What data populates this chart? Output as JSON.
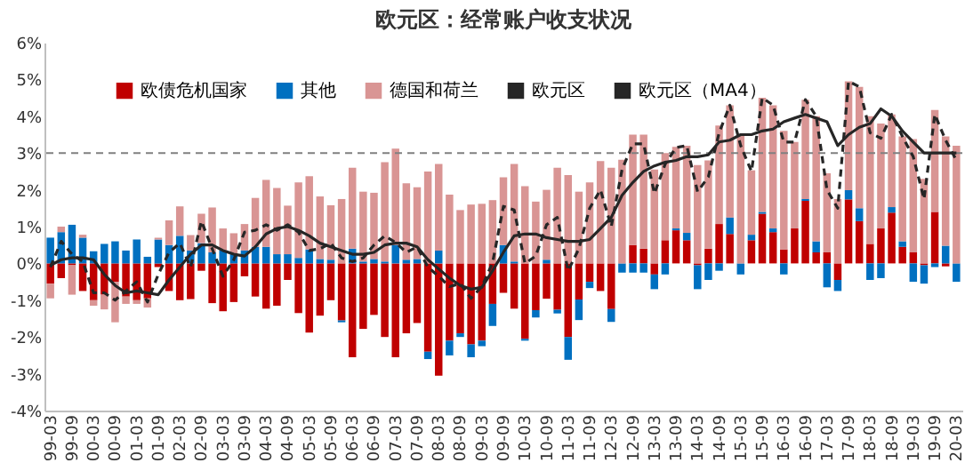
{
  "chart_data": {
    "type": "bar",
    "title": "欧元区：经常账户收支状况",
    "stacked": true,
    "legend": "top",
    "grid": false,
    "categories": [
      "99-03",
      null,
      "99-09",
      null,
      "00-03",
      null,
      "00-09",
      null,
      "01-03",
      null,
      "01-09",
      null,
      "02-03",
      null,
      "02-09",
      null,
      "03-03",
      null,
      "03-09",
      null,
      "04-03",
      null,
      "04-09",
      null,
      "05-03",
      null,
      "05-09",
      null,
      "06-03",
      null,
      "06-09",
      null,
      "07-03",
      null,
      "07-09",
      null,
      "08-03",
      null,
      "08-09",
      null,
      "09-03",
      null,
      "09-09",
      null,
      "10-03",
      null,
      "10-09",
      null,
      "11-03",
      null,
      "11-09",
      null,
      "12-03",
      null,
      "12-09",
      null,
      "13-03",
      null,
      "13-09",
      null,
      "14-03",
      null,
      "14-09",
      null,
      "15-03",
      null,
      "15-09",
      null,
      "16-03",
      null,
      "16-09",
      null,
      "17-03",
      null,
      "17-09",
      null,
      "18-03",
      null,
      "18-09",
      null,
      "19-03",
      null,
      "19-09",
      null,
      "20-03"
    ],
    "ylim": [
      -4,
      6
    ],
    "yticks": [
      {
        "value": -4,
        "label": "-4%"
      },
      {
        "value": -3,
        "label": "-3%"
      },
      {
        "value": -2,
        "label": "-2%"
      },
      {
        "value": -1,
        "label": "-1%"
      },
      {
        "value": 0,
        "label": "0%"
      },
      {
        "value": 1,
        "label": "1%"
      },
      {
        "value": 2,
        "label": "2%"
      },
      {
        "value": 3,
        "label": "3%"
      },
      {
        "value": 4,
        "label": "4%"
      },
      {
        "value": 5,
        "label": "5%"
      },
      {
        "value": 6,
        "label": "6%"
      }
    ],
    "ref_lines": [
      {
        "axis": "y",
        "value": 3,
        "color": "#808080",
        "line_style": "dashed"
      }
    ],
    "series": [
      {
        "name": "欧债危机国家",
        "type": "bar",
        "color": "#c00000",
        "values": [
          -0.55,
          -0.4,
          -0.05,
          -0.75,
          -1.0,
          -0.85,
          -0.5,
          -0.9,
          -1.0,
          -0.95,
          -0.1,
          -0.75,
          -1.0,
          -0.97,
          -0.2,
          -1.08,
          -1.3,
          -1.05,
          -0.35,
          -0.9,
          -1.23,
          -1.15,
          -0.45,
          -1.35,
          -1.88,
          -1.42,
          -1.0,
          -1.55,
          -2.55,
          -1.78,
          -1.4,
          -2.0,
          -2.55,
          -1.9,
          -1.62,
          -2.4,
          -3.05,
          -2.1,
          -1.9,
          -2.2,
          -2.1,
          -1.1,
          -0.8,
          -1.23,
          -2.05,
          -1.27,
          -0.96,
          -1.26,
          -2.0,
          -0.98,
          -0.5,
          -0.75,
          -1.24,
          0.0,
          0.5,
          0.4,
          -0.3,
          0.63,
          0.9,
          0.63,
          -0.05,
          0.4,
          1.07,
          0.8,
          0.0,
          0.63,
          1.35,
          0.85,
          0.38,
          0.95,
          1.7,
          0.3,
          0.3,
          -0.45,
          1.74,
          1.15,
          0.53,
          0.95,
          1.38,
          0.45,
          0.3,
          -0.05,
          1.4,
          -0.08,
          0.0
        ]
      },
      {
        "name": "其他",
        "type": "bar",
        "color": "#0070c0",
        "values": [
          0.7,
          0.85,
          1.05,
          0.7,
          0.33,
          0.53,
          0.6,
          0.35,
          0.65,
          0.18,
          0.65,
          0.5,
          0.75,
          0.35,
          0.55,
          0.3,
          0.35,
          0.25,
          0.35,
          0.45,
          0.45,
          0.25,
          0.25,
          0.15,
          0.38,
          0.12,
          0.1,
          -0.05,
          0.4,
          0.05,
          0.12,
          0.05,
          0.5,
          0.1,
          0.12,
          -0.2,
          0.35,
          -0.4,
          -0.1,
          -0.35,
          -0.15,
          -0.6,
          0.5,
          0.05,
          -0.05,
          -0.2,
          0.1,
          -0.1,
          -0.62,
          -0.56,
          -0.17,
          0.0,
          -0.35,
          -0.25,
          -0.25,
          -0.25,
          -0.4,
          -0.3,
          0.05,
          0.2,
          -0.65,
          -0.45,
          -0.2,
          0.45,
          -0.3,
          0.15,
          0.05,
          0.1,
          -0.3,
          0.0,
          0.05,
          0.3,
          -0.65,
          -0.3,
          0.25,
          0.35,
          -0.45,
          -0.4,
          0.15,
          0.15,
          -0.5,
          -0.5,
          -0.1,
          0.48,
          -0.5
        ]
      },
      {
        "name": "德国和荷兰",
        "type": "bar",
        "color": "#d99594",
        "values": [
          -0.4,
          0.15,
          -0.8,
          0.08,
          -0.15,
          -0.4,
          -1.1,
          -0.2,
          -0.1,
          -0.25,
          0.05,
          0.67,
          0.8,
          0.42,
          0.8,
          1.22,
          0.6,
          0.57,
          0.72,
          1.33,
          1.82,
          1.8,
          1.32,
          2.05,
          1.99,
          1.7,
          1.48,
          1.75,
          2.2,
          1.9,
          1.8,
          2.7,
          2.62,
          2.08,
          1.95,
          2.5,
          2.35,
          1.87,
          1.45,
          1.6,
          1.62,
          1.72,
          1.84,
          2.65,
          2.1,
          1.68,
          1.9,
          2.6,
          2.4,
          1.95,
          2.2,
          2.78,
          2.6,
          2.82,
          3.0,
          3.1,
          2.55,
          2.37,
          2.22,
          2.37,
          2.67,
          2.4,
          2.68,
          3.05,
          3.5,
          1.75,
          3.1,
          3.35,
          3.22,
          2.35,
          2.7,
          3.4,
          2.15,
          1.75,
          2.96,
          3.3,
          3.47,
          2.85,
          2.52,
          2.85,
          3.08,
          2.3,
          2.77,
          2.97,
          3.2
        ]
      },
      {
        "name": "欧元区",
        "type": "line",
        "line_style": "dashed",
        "color": "#262626",
        "values": [
          -0.1,
          0.6,
          0.25,
          0.05,
          -0.8,
          -0.8,
          -1.0,
          -0.75,
          -0.5,
          -1.05,
          -0.3,
          0.3,
          0.55,
          -0.1,
          1.15,
          0.4,
          -0.35,
          0.1,
          0.85,
          0.9,
          1.05,
          0.9,
          1.05,
          0.85,
          0.35,
          0.4,
          0.55,
          0.15,
          0.05,
          0.15,
          0.5,
          0.75,
          0.57,
          0.3,
          0.45,
          -0.1,
          -0.35,
          -0.63,
          -0.55,
          -0.95,
          -0.63,
          0.02,
          1.55,
          1.45,
          0.0,
          0.2,
          1.05,
          1.25,
          -0.2,
          0.4,
          1.5,
          2.0,
          1.0,
          2.55,
          3.25,
          3.25,
          1.9,
          2.7,
          3.15,
          3.2,
          1.95,
          2.35,
          3.55,
          4.3,
          3.2,
          2.5,
          4.5,
          4.3,
          3.3,
          3.3,
          4.45,
          4.0,
          2.0,
          1.5,
          4.95,
          4.8,
          3.55,
          3.4,
          4.05,
          3.45,
          2.9,
          1.75,
          4.05,
          3.35,
          2.8
        ]
      },
      {
        "name": "欧元区（MA4）",
        "type": "line",
        "line_style": "solid",
        "color": "#262626",
        "values": [
          -0.05,
          0.1,
          0.15,
          0.15,
          0.1,
          -0.3,
          -0.6,
          -0.8,
          -0.75,
          -0.8,
          -0.85,
          -0.45,
          -0.1,
          0.25,
          0.5,
          0.5,
          0.35,
          0.25,
          0.2,
          0.45,
          0.8,
          0.95,
          1.0,
          0.9,
          0.75,
          0.55,
          0.45,
          0.35,
          0.25,
          0.25,
          0.3,
          0.5,
          0.55,
          0.55,
          0.45,
          0.1,
          -0.15,
          -0.4,
          -0.6,
          -0.7,
          -0.65,
          -0.2,
          0.3,
          0.75,
          0.8,
          0.8,
          0.7,
          0.65,
          0.6,
          0.6,
          0.65,
          0.95,
          1.25,
          1.85,
          2.2,
          2.5,
          2.65,
          2.75,
          2.8,
          2.9,
          2.9,
          2.95,
          3.3,
          3.35,
          3.5,
          3.5,
          3.6,
          3.65,
          3.85,
          3.95,
          4.05,
          3.95,
          3.85,
          3.2,
          3.5,
          3.7,
          3.8,
          4.2,
          4.0,
          3.6,
          3.3,
          3.0,
          3.0,
          3.0,
          3.0
        ]
      }
    ]
  }
}
